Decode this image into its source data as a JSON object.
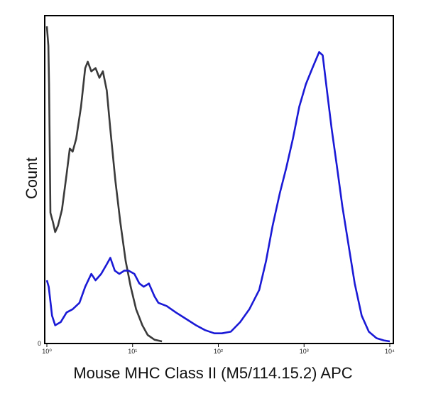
{
  "chart_data": {
    "type": "line",
    "title": "",
    "xlabel": "Mouse MHC Class II (M5/114.15.2) APC",
    "ylabel": "Count",
    "x_scale": "log",
    "xlim": [
      1,
      10000
    ],
    "ylim": [
      0,
      100
    ],
    "x_ticks": [
      {
        "value": 1,
        "label": "10⁰"
      },
      {
        "value": 10,
        "label": "10¹"
      },
      {
        "value": 100,
        "label": "10²"
      },
      {
        "value": 1000,
        "label": "10³"
      },
      {
        "value": 10000,
        "label": "10⁴"
      }
    ],
    "y_tick_label": "0",
    "grid": false,
    "legend": false,
    "series": [
      {
        "color": "#3a3a3a",
        "points": [
          [
            1.0,
            98
          ],
          [
            1.04,
            92
          ],
          [
            1.06,
            80
          ],
          [
            1.1,
            40
          ],
          [
            1.18,
            37
          ],
          [
            1.25,
            34
          ],
          [
            1.35,
            36
          ],
          [
            1.5,
            41
          ],
          [
            1.7,
            52
          ],
          [
            1.85,
            60
          ],
          [
            2.0,
            59
          ],
          [
            2.2,
            63
          ],
          [
            2.5,
            73
          ],
          [
            2.8,
            85
          ],
          [
            3.0,
            87
          ],
          [
            3.3,
            84
          ],
          [
            3.7,
            85
          ],
          [
            4.1,
            82
          ],
          [
            4.5,
            84
          ],
          [
            5.0,
            78
          ],
          [
            5.5,
            66
          ],
          [
            6.3,
            50
          ],
          [
            7.2,
            37
          ],
          [
            8.3,
            25
          ],
          [
            9.5,
            17
          ],
          [
            11,
            10
          ],
          [
            13,
            5
          ],
          [
            15,
            2
          ],
          [
            18,
            0.5
          ],
          [
            22,
            0
          ]
        ]
      },
      {
        "color": "#1a1ad6",
        "points": [
          [
            1.0,
            19
          ],
          [
            1.05,
            17
          ],
          [
            1.15,
            8
          ],
          [
            1.25,
            5
          ],
          [
            1.45,
            6
          ],
          [
            1.7,
            9
          ],
          [
            2.0,
            10
          ],
          [
            2.4,
            12
          ],
          [
            2.8,
            17
          ],
          [
            3.3,
            21
          ],
          [
            3.7,
            19
          ],
          [
            4.3,
            21
          ],
          [
            5.0,
            24
          ],
          [
            5.5,
            26
          ],
          [
            6.2,
            22
          ],
          [
            7.0,
            21
          ],
          [
            8.0,
            22
          ],
          [
            9.0,
            22
          ],
          [
            10.5,
            21
          ],
          [
            12,
            18
          ],
          [
            13.5,
            17
          ],
          [
            15.5,
            18
          ],
          [
            18,
            14
          ],
          [
            20,
            12
          ],
          [
            25,
            11
          ],
          [
            32,
            9
          ],
          [
            42,
            7
          ],
          [
            55,
            5
          ],
          [
            70,
            3.5
          ],
          [
            90,
            2.5
          ],
          [
            110,
            2.5
          ],
          [
            140,
            3
          ],
          [
            180,
            6
          ],
          [
            230,
            10
          ],
          [
            300,
            16
          ],
          [
            360,
            25
          ],
          [
            430,
            36
          ],
          [
            520,
            46
          ],
          [
            620,
            54
          ],
          [
            740,
            63
          ],
          [
            880,
            73
          ],
          [
            1050,
            80
          ],
          [
            1250,
            85
          ],
          [
            1500,
            90
          ],
          [
            1650,
            89
          ],
          [
            1850,
            78
          ],
          [
            2100,
            66
          ],
          [
            2400,
            55
          ],
          [
            2800,
            42
          ],
          [
            3300,
            30
          ],
          [
            3900,
            18
          ],
          [
            4700,
            8
          ],
          [
            5700,
            3
          ],
          [
            7000,
            1
          ],
          [
            8500,
            0.3
          ],
          [
            10000,
            0
          ]
        ]
      }
    ]
  }
}
